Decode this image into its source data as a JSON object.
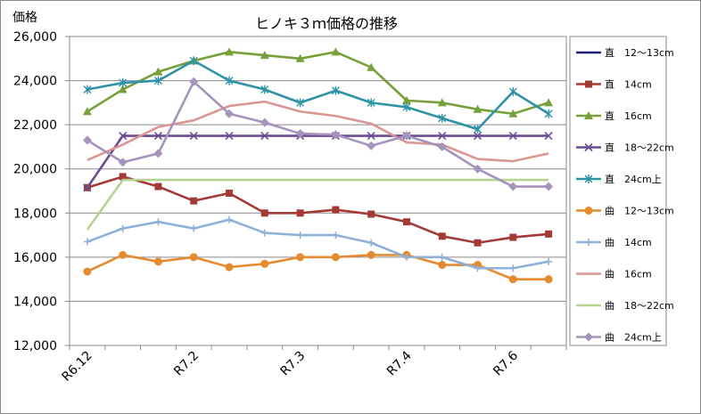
{
  "chart_data": {
    "type": "line",
    "title": "ヒノキ３ｍ価格の推移",
    "ylabel": "価格",
    "xlabel": "",
    "ylim": [
      12000,
      26000
    ],
    "yticks": [
      12000,
      14000,
      16000,
      18000,
      20000,
      22000,
      24000,
      26000
    ],
    "ytick_labels": [
      "12,000",
      "14,000",
      "16,000",
      "18,000",
      "20,000",
      "22,000",
      "24,000",
      "26,000"
    ],
    "x_labels": [
      {
        "index": 0,
        "label": "R6.12"
      },
      {
        "index": 3,
        "label": "R7.2"
      },
      {
        "index": 6,
        "label": "R7.3"
      },
      {
        "index": 9,
        "label": "R7.4"
      },
      {
        "index": 12,
        "label": "R7.6"
      }
    ],
    "n_points": 14,
    "grid": "horizontal",
    "legend_position": "right",
    "series": [
      {
        "name": "直　12〜13cm",
        "color": "#1f1f7a",
        "marker": "none",
        "values": []
      },
      {
        "name": "直　14cm",
        "color": "#a33a36",
        "marker": "square",
        "values": [
          19150,
          19650,
          19200,
          18550,
          18900,
          18000,
          18000,
          18150,
          17950,
          17600,
          16950,
          16650,
          16900,
          17050
        ]
      },
      {
        "name": "直　16cm",
        "color": "#77a03a",
        "marker": "triangle",
        "values": [
          22600,
          23600,
          24400,
          24900,
          25300,
          25150,
          25000,
          25300,
          24600,
          23100,
          23000,
          22700,
          22500,
          23000
        ]
      },
      {
        "name": "直　18〜22cm",
        "color": "#6a4c93",
        "marker": "x",
        "values": [
          19150,
          21500,
          21500,
          21500,
          21500,
          21500,
          21500,
          21500,
          21500,
          21500,
          21500,
          21500,
          21500,
          21500
        ]
      },
      {
        "name": "直　24cm上",
        "color": "#2f93a6",
        "marker": "star",
        "values": [
          23600,
          23900,
          24000,
          24900,
          24000,
          23600,
          23000,
          23550,
          23000,
          22800,
          22300,
          21800,
          23500,
          22500
        ]
      },
      {
        "name": "曲　12〜13cm",
        "color": "#e58a2f",
        "marker": "circle",
        "values": [
          15350,
          16100,
          15800,
          16000,
          15550,
          15700,
          16000,
          16000,
          16100,
          16100,
          15650,
          15650,
          15000,
          15000
        ]
      },
      {
        "name": "曲　14cm",
        "color": "#8fb0d9",
        "marker": "plus",
        "values": [
          16700,
          17300,
          17600,
          17300,
          17700,
          17100,
          17000,
          17000,
          16650,
          16000,
          16000,
          15500,
          15500,
          15800
        ]
      },
      {
        "name": "曲　16cm",
        "color": "#d99692",
        "marker": "none",
        "values": [
          20400,
          21100,
          21900,
          22200,
          22850,
          23050,
          22600,
          22400,
          22050,
          21200,
          21100,
          20450,
          20350,
          20700
        ]
      },
      {
        "name": "曲　18〜22cm",
        "color": "#b3d38e",
        "marker": "none",
        "values": [
          17250,
          19500,
          19500,
          19500,
          19500,
          19500,
          19500,
          19500,
          19500,
          19500,
          19500,
          19500,
          19500,
          19500
        ]
      },
      {
        "name": "曲　24cm上",
        "color": "#a493bd",
        "marker": "diamond",
        "values": [
          21300,
          20300,
          20700,
          23950,
          22500,
          22100,
          21600,
          21550,
          21050,
          21500,
          21000,
          20000,
          19200,
          19200
        ]
      }
    ]
  }
}
